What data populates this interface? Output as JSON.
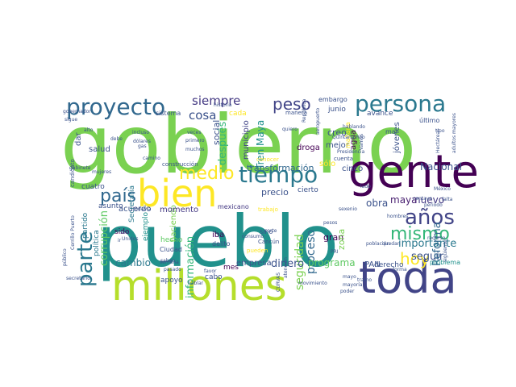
{
  "wordcloud": {
    "palette": "viridis",
    "background": "#ffffff",
    "words": [
      {
        "text": "gobierno",
        "color": "#7ad151"
      },
      {
        "text": "pueblo",
        "color": "#21918c"
      },
      {
        "text": "gente",
        "color": "#440154"
      },
      {
        "text": "millones",
        "color": "#b5de2b"
      },
      {
        "text": "toda",
        "color": "#414487"
      },
      {
        "text": "bien",
        "color": "#fde725"
      },
      {
        "text": "proyecto",
        "color": "#31688e"
      },
      {
        "text": "persona",
        "color": "#2a788e"
      },
      {
        "text": "tiempo",
        "color": "#2a788e"
      },
      {
        "text": "país",
        "color": "#31688e"
      },
      {
        "text": "medio",
        "color": "#fde725"
      },
      {
        "text": "parte",
        "color": "#2a788e"
      },
      {
        "text": "años",
        "color": "#414487"
      },
      {
        "text": "mismo",
        "color": "#35b779"
      },
      {
        "text": "hoy",
        "color": "#fde725"
      },
      {
        "text": "peso",
        "color": "#414487"
      },
      {
        "text": "siempre",
        "color": "#443983"
      },
      {
        "text": "cosa",
        "color": "#3b528b"
      },
      {
        "text": "Tren Maya",
        "color": "#21918c"
      },
      {
        "text": "después",
        "color": "#35b779"
      },
      {
        "text": "seguridad",
        "color": "#7ad151"
      },
      {
        "text": "proceso",
        "color": "#31688e"
      },
      {
        "text": "dinero",
        "color": "#3b528b"
      },
      {
        "text": "programa",
        "color": "#5ec962"
      },
      {
        "text": "cambio",
        "color": "#2a788e"
      },
      {
        "text": "corrupción",
        "color": "#5ec962"
      },
      {
        "text": "información",
        "color": "#35b779"
      },
      {
        "text": "importante",
        "color": "#2a788e"
      },
      {
        "text": "seguir",
        "color": "#3b528b"
      },
      {
        "text": "Reforma",
        "color": "#31688e"
      },
      {
        "text": "Nacional",
        "color": "#3b528b"
      },
      {
        "text": "nuevo",
        "color": "#443983"
      },
      {
        "text": "maya",
        "color": "#481f70"
      },
      {
        "text": "obra",
        "color": "#3b528b"
      },
      {
        "text": "precio",
        "color": "#3b528b"
      },
      {
        "text": "transformación",
        "color": "#31688e"
      },
      {
        "text": "social",
        "color": "#3b528b"
      },
      {
        "text": "municipio",
        "color": "#414487"
      },
      {
        "text": "haciendo",
        "color": "#7ad151"
      },
      {
        "text": "acuerdo",
        "color": "#3b528b"
      },
      {
        "text": "momento",
        "color": "#443983"
      },
      {
        "text": "empresa",
        "color": "#3b528b"
      },
      {
        "text": "ejemplo",
        "color": "#21918c"
      },
      {
        "text": "salud",
        "color": "#3b528b"
      },
      {
        "text": "dar",
        "color": "#3b528b"
      },
      {
        "text": "cuatro",
        "color": "#3b528b"
      },
      {
        "text": "asunto",
        "color": "#3b528b"
      },
      {
        "text": "partido",
        "color": "#2a788e"
      },
      {
        "text": "política",
        "color": "#2a788e"
      },
      {
        "text": "sido",
        "color": "#440154"
      },
      {
        "text": "hecho",
        "color": "#5ec962"
      },
      {
        "text": "apoyo",
        "color": "#3b528b"
      },
      {
        "text": "cabo",
        "color": "#3b528b"
      },
      {
        "text": "mes",
        "color": "#440154"
      },
      {
        "text": "Secretaría",
        "color": "#2a788e"
      },
      {
        "text": "Ciudad",
        "color": "#3b528b"
      },
      {
        "text": "iba",
        "color": "#440154"
      },
      {
        "text": "mexicano",
        "color": "#443983"
      },
      {
        "text": "delito",
        "color": "#3b528b"
      },
      {
        "text": "sino",
        "color": "#3b528b"
      },
      {
        "text": "Cancún",
        "color": "#3b528b"
      },
      {
        "text": "gran",
        "color": "#440154"
      },
      {
        "text": "zona",
        "color": "#7ad151"
      },
      {
        "text": "cinco",
        "color": "#3b528b"
      },
      {
        "text": "cierto",
        "color": "#3b528b"
      },
      {
        "text": "PAN",
        "color": "#3b528b"
      },
      {
        "text": "derecho",
        "color": "#3b528b"
      },
      {
        "text": "problema",
        "color": "#21918c"
      },
      {
        "text": "creo",
        "color": "#3b528b"
      },
      {
        "text": "mejor",
        "color": "#3b528b"
      },
      {
        "text": "sólo",
        "color": "#fde725"
      },
      {
        "text": "droga",
        "color": "#440154"
      },
      {
        "text": "agua",
        "color": "#440154"
      },
      {
        "text": "jóvenes",
        "color": "#3b528b"
      },
      {
        "text": "avance",
        "color": "#3b528b"
      },
      {
        "text": "junio",
        "color": "#3b528b"
      },
      {
        "text": "embargo",
        "color": "#3b528b"
      },
      {
        "text": "manera",
        "color": "#3b528b"
      },
      {
        "text": "cada",
        "color": "#fde725"
      },
      {
        "text": "sistema",
        "color": "#3b528b"
      },
      {
        "text": "mañana",
        "color": "#fde725"
      },
      {
        "text": "último",
        "color": "#3b528b"
      },
      {
        "text": "mal",
        "color": "#3b528b"
      },
      {
        "text": "construcción",
        "color": "#3b528b"
      },
      {
        "text": "trabajo",
        "color": "#fde725"
      },
      {
        "text": "pueden",
        "color": "#fde725"
      },
      {
        "text": "conocer",
        "color": "#fde725"
      },
      {
        "text": "candidato",
        "color": "#3b528b"
      },
      {
        "text": "gabinete",
        "color": "#3b528b"
      },
      {
        "text": "mujeres",
        "color": "#3b528b"
      },
      {
        "text": "incluso",
        "color": "#3b528b"
      },
      {
        "text": "dólares",
        "color": "#3b528b"
      },
      {
        "text": "gas",
        "color": "#3b528b"
      },
      {
        "text": "debe",
        "color": "#3b528b"
      },
      {
        "text": "alto",
        "color": "#3b528b"
      },
      {
        "text": "hablando",
        "color": "#3b528b"
      },
      {
        "text": "Quintana Roo",
        "color": "#3b528b"
      },
      {
        "text": "Presidencia",
        "color": "#3b528b"
      },
      {
        "text": "cuenta",
        "color": "#3b528b"
      },
      {
        "text": "quiero",
        "color": "#3b528b"
      },
      {
        "text": "lado",
        "color": "#3b528b"
      },
      {
        "text": "centavo",
        "color": "#3b528b"
      },
      {
        "text": "periodo",
        "color": "#3b528b"
      },
      {
        "text": "recurso",
        "color": "#3b528b"
      },
      {
        "text": "población",
        "color": "#3b528b"
      },
      {
        "text": "pesos",
        "color": "#3b528b"
      },
      {
        "text": "tramo",
        "color": "#3b528b"
      },
      {
        "text": "mayoría",
        "color": "#3b528b"
      },
      {
        "text": "poder",
        "color": "#3b528b"
      },
      {
        "text": "movimiento",
        "color": "#3b528b"
      },
      {
        "text": "pasado",
        "color": "#3b528b"
      },
      {
        "text": "hablar",
        "color": "#3b528b"
      },
      {
        "text": "semana",
        "color": "#3b528b"
      },
      {
        "text": "saben",
        "color": "#3b528b"
      },
      {
        "text": "camino",
        "color": "#3b528b"
      },
      {
        "text": "público",
        "color": "#3b528b"
      },
      {
        "text": "secretario",
        "color": "#3b528b"
      },
      {
        "text": "Cerrillo Puerto",
        "color": "#3b528b"
      },
      {
        "text": "sigue",
        "color": "#3b528b"
      },
      {
        "text": "gobernador",
        "color": "#3b528b"
      },
      {
        "text": "seis",
        "color": "#3b528b"
      },
      {
        "text": "ir",
        "color": "#3b528b"
      },
      {
        "text": "primero",
        "color": "#3b528b"
      },
      {
        "text": "muchos",
        "color": "#3b528b"
      },
      {
        "text": "veces",
        "color": "#3b528b"
      },
      {
        "text": "historia",
        "color": "#3b528b"
      },
      {
        "text": "siguiente",
        "color": "#3b528b"
      },
      {
        "text": "adultos mayores",
        "color": "#3b528b"
      },
      {
        "text": "tipo",
        "color": "#3b528b"
      },
      {
        "text": "aeropuerto",
        "color": "#3b528b"
      },
      {
        "text": "Hectáreas",
        "color": "#3b528b"
      },
      {
        "text": "Unidos",
        "color": "#3b528b"
      },
      {
        "text": "consumo",
        "color": "#3b528b"
      },
      {
        "text": "corte",
        "color": "#3b528b"
      },
      {
        "text": "todavía",
        "color": "#3b528b"
      },
      {
        "text": "favor",
        "color": "#3b528b"
      },
      {
        "text": "CURVAS",
        "color": "#3b528b"
      },
      {
        "text": "forma",
        "color": "#3b528b"
      },
      {
        "text": "hombres",
        "color": "#3b528b"
      },
      {
        "text": "falta",
        "color": "#3b528b"
      },
      {
        "text": "México",
        "color": "#3b528b"
      },
      {
        "text": "Vamos",
        "color": "#3b528b"
      },
      {
        "text": "República",
        "color": "#3b528b"
      },
      {
        "text": "atención",
        "color": "#3b528b"
      },
      {
        "text": "sexenio",
        "color": "#3b528b"
      },
      {
        "text": "PRI",
        "color": "#3b528b"
      },
      {
        "text": "quedan",
        "color": "#3b528b"
      },
      {
        "text": "mayo",
        "color": "#3b528b"
      }
    ]
  }
}
